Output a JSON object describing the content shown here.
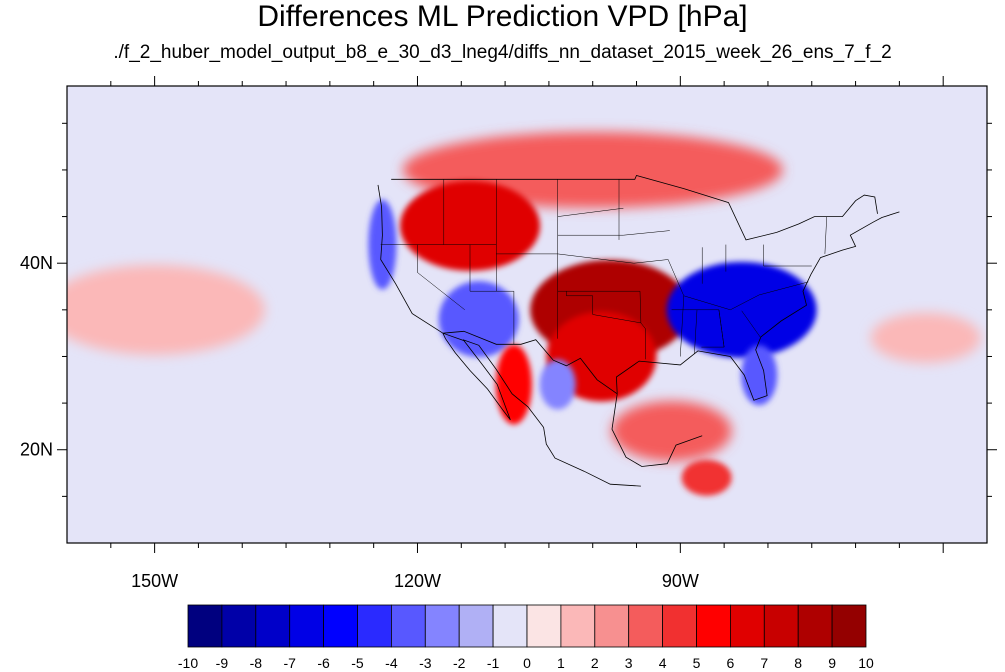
{
  "title": "Differences ML Prediction VPD [hPa]",
  "subtitle": "./f_2_huber_model_output_b8_e_30_d3_lneg4/diffs_nn_dataset_2015_week_26_ens_7_f_2",
  "chart_data": {
    "type": "heatmap",
    "title": "Differences ML Prediction VPD [hPa]",
    "subtitle": "./f_2_huber_model_output_b8_e_30_d3_lneg4/diffs_nn_dataset_2015_week_26_ens_7_f_2",
    "units": "hPa",
    "lon_range": [
      -160,
      -55
    ],
    "lat_range": [
      10,
      59
    ],
    "x_ticks": [
      {
        "lon": -150,
        "label": "150W"
      },
      {
        "lon": -120,
        "label": "120W"
      },
      {
        "lon": -90,
        "label": "90W"
      }
    ],
    "y_ticks": [
      {
        "lat": 40,
        "label": "40N"
      },
      {
        "lat": 20,
        "label": "20N"
      }
    ],
    "colorbar": {
      "levels": [
        -10,
        -9,
        -8,
        -7,
        -6,
        -5,
        -4,
        -3,
        -2,
        -1,
        0,
        1,
        2,
        3,
        4,
        5,
        6,
        7,
        8,
        9,
        10
      ],
      "labels": [
        "-10",
        "-9",
        "-8",
        "-7",
        "-6",
        "-5",
        "-4",
        "-3",
        "-2",
        "-1",
        "0",
        "1",
        "2",
        "3",
        "4",
        "5",
        "6",
        "7",
        "8",
        "9",
        "10"
      ],
      "colors": [
        "#00007f",
        "#0000a8",
        "#0000c9",
        "#0000e6",
        "#0000ff",
        "#2a2aff",
        "#5858ff",
        "#8484ff",
        "#b0b0f5",
        "#e4e4f8",
        "#fbe4e4",
        "#fbb8b8",
        "#f79090",
        "#f45c5c",
        "#f13030",
        "#ff0000",
        "#e00000",
        "#c80000",
        "#ae0000",
        "#940000"
      ]
    },
    "features": [
      {
        "name": "northern-plains-canada-positive",
        "lon": -100,
        "lat": 50,
        "value": 3
      },
      {
        "name": "northwest-positive",
        "lon": -114,
        "lat": 44,
        "value": 6
      },
      {
        "name": "southern-plains-positive",
        "lon": -98,
        "lat": 35,
        "value": 8
      },
      {
        "name": "texas-positive",
        "lon": -99,
        "lat": 30,
        "value": 6
      },
      {
        "name": "pacific-coast-negative",
        "lon": -124,
        "lat": 42,
        "value": -4
      },
      {
        "name": "southwest-negative",
        "lon": -113,
        "lat": 34,
        "value": -4
      },
      {
        "name": "southeast-negative",
        "lon": -83,
        "lat": 35,
        "value": -7
      },
      {
        "name": "florida-negative",
        "lon": -81,
        "lat": 28,
        "value": -4
      },
      {
        "name": "mexico-interior-negative",
        "lon": -104,
        "lat": 27,
        "value": -3
      },
      {
        "name": "mexico-coast-positive",
        "lon": -109,
        "lat": 27,
        "value": 5
      },
      {
        "name": "gulf-mexico-positive",
        "lon": -91,
        "lat": 22,
        "value": 3
      },
      {
        "name": "pacific-tropics-negative",
        "lon": -145,
        "lat": 22,
        "value": -1
      },
      {
        "name": "central-pacific-positive",
        "lon": -150,
        "lat": 35,
        "value": 1
      },
      {
        "name": "atlantic-east-negative",
        "lon": -62,
        "lat": 38,
        "value": -1
      },
      {
        "name": "atlantic-south-positive",
        "lon": -62,
        "lat": 32,
        "value": 1
      },
      {
        "name": "caribbean-positive",
        "lon": -87,
        "lat": 17,
        "value": 4
      }
    ]
  }
}
